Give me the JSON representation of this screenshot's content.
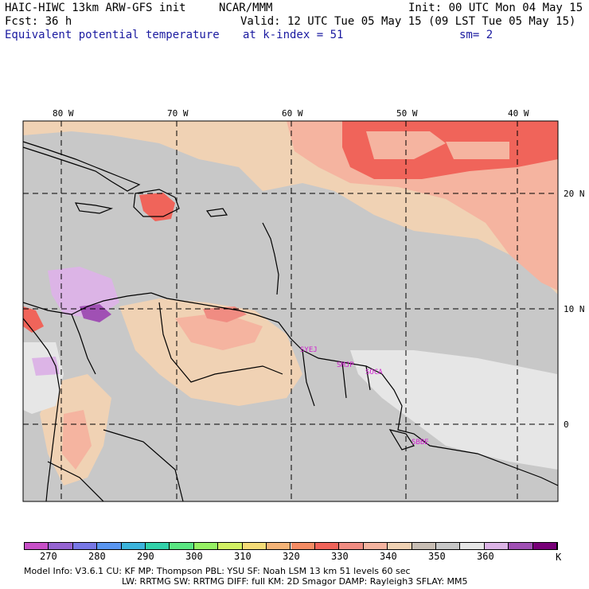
{
  "header": {
    "line1_left": "HAIC-HIWC 13km ARW-GFS init",
    "line1_mid": "NCAR/MMM",
    "line1_right": "Init: 00 UTC Mon 04 May 15",
    "line2_left": "Fcst:   36 h",
    "line2_right": "Valid: 12 UTC Tue 05 May 15 (09 LST Tue 05 May 15)",
    "line3_left": "Equivalent potential temperature",
    "line3_mid": "at k-index =  51",
    "line3_right": "sm= 2"
  },
  "map": {
    "lon_labels": [
      "80 W",
      "70 W",
      "60 W",
      "50 W",
      "40 W"
    ],
    "lat_labels": [
      "20 N",
      "10 N",
      "0"
    ],
    "stations": [
      "SYEJ",
      "SMJP",
      "SOCA",
      "SBBE"
    ]
  },
  "colorbar": {
    "colors": [
      "#c850c8",
      "#9664d2",
      "#7878e6",
      "#5a96f0",
      "#3cb4dc",
      "#32d2aa",
      "#5ae682",
      "#96f064",
      "#d2f064",
      "#f5dc78",
      "#f5b478",
      "#f58c64",
      "#f0645a",
      "#f08c82",
      "#f5b4a0",
      "#f0d2b4",
      "#c8beb4",
      "#c8c8c8",
      "#e6e6e6",
      "#dcb4e6",
      "#a050b4",
      "#780078"
    ],
    "tick_labels": [
      "270",
      "280",
      "290",
      "300",
      "310",
      "320",
      "330",
      "340",
      "350",
      "360"
    ],
    "unit": "K"
  },
  "footer": {
    "line1": "Model Info: V3.6.1   CU: KF     MP: Thompson   PBL: YSU    SF: Noah LSM    13 km   51 levels  60 sec",
    "line2": "LW: RRTMG   SW: RRTMG  DIFF: full  KM: 2D Smagor DAMP: Rayleigh3  SFLAY: MM5"
  }
}
